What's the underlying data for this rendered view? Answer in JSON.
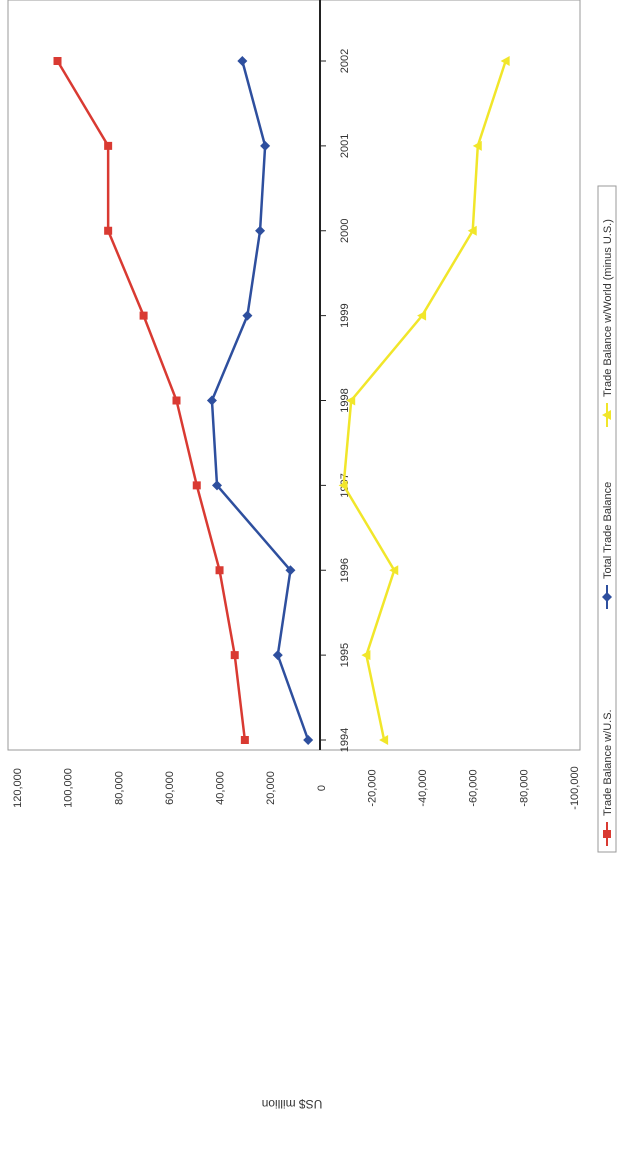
{
  "chart_data": {
    "type": "line",
    "ylabel": "US$ million",
    "categories": [
      "1994",
      "1995",
      "1996",
      "1997",
      "1998",
      "1999",
      "2000",
      "2001",
      "2002"
    ],
    "ylim": [
      -100000,
      120000
    ],
    "yticks": [
      120000,
      100000,
      80000,
      60000,
      40000,
      20000,
      0,
      -20000,
      -40000,
      -60000,
      -80000,
      -100000
    ],
    "ytick_labels": [
      "120,000",
      "100,000",
      "80,000",
      "60,000",
      "40,000",
      "20,000",
      "0",
      "-20,000",
      "-40,000",
      "-60,000",
      "-80,000",
      "-100,000"
    ],
    "grid": false,
    "legend_position": "bottom",
    "series": [
      {
        "name": "Trade Balance w/U.S.",
        "color": "#d93a32",
        "marker": "square",
        "values": [
          30000,
          34000,
          40000,
          49000,
          57000,
          70000,
          84000,
          84000,
          104000
        ]
      },
      {
        "name": "Total Trade Balance",
        "color": "#2e4f9e",
        "marker": "diamond",
        "values": [
          5000,
          17000,
          12000,
          41000,
          43000,
          29000,
          24000,
          22000,
          31000
        ]
      },
      {
        "name": "Trade Balance w/World (minus U.S.)",
        "color": "#f1e62a",
        "marker": "triangle",
        "values": [
          -25000,
          -18000,
          -29000,
          -9000,
          -12000,
          -40000,
          -60000,
          -62000,
          -73000
        ]
      }
    ]
  }
}
